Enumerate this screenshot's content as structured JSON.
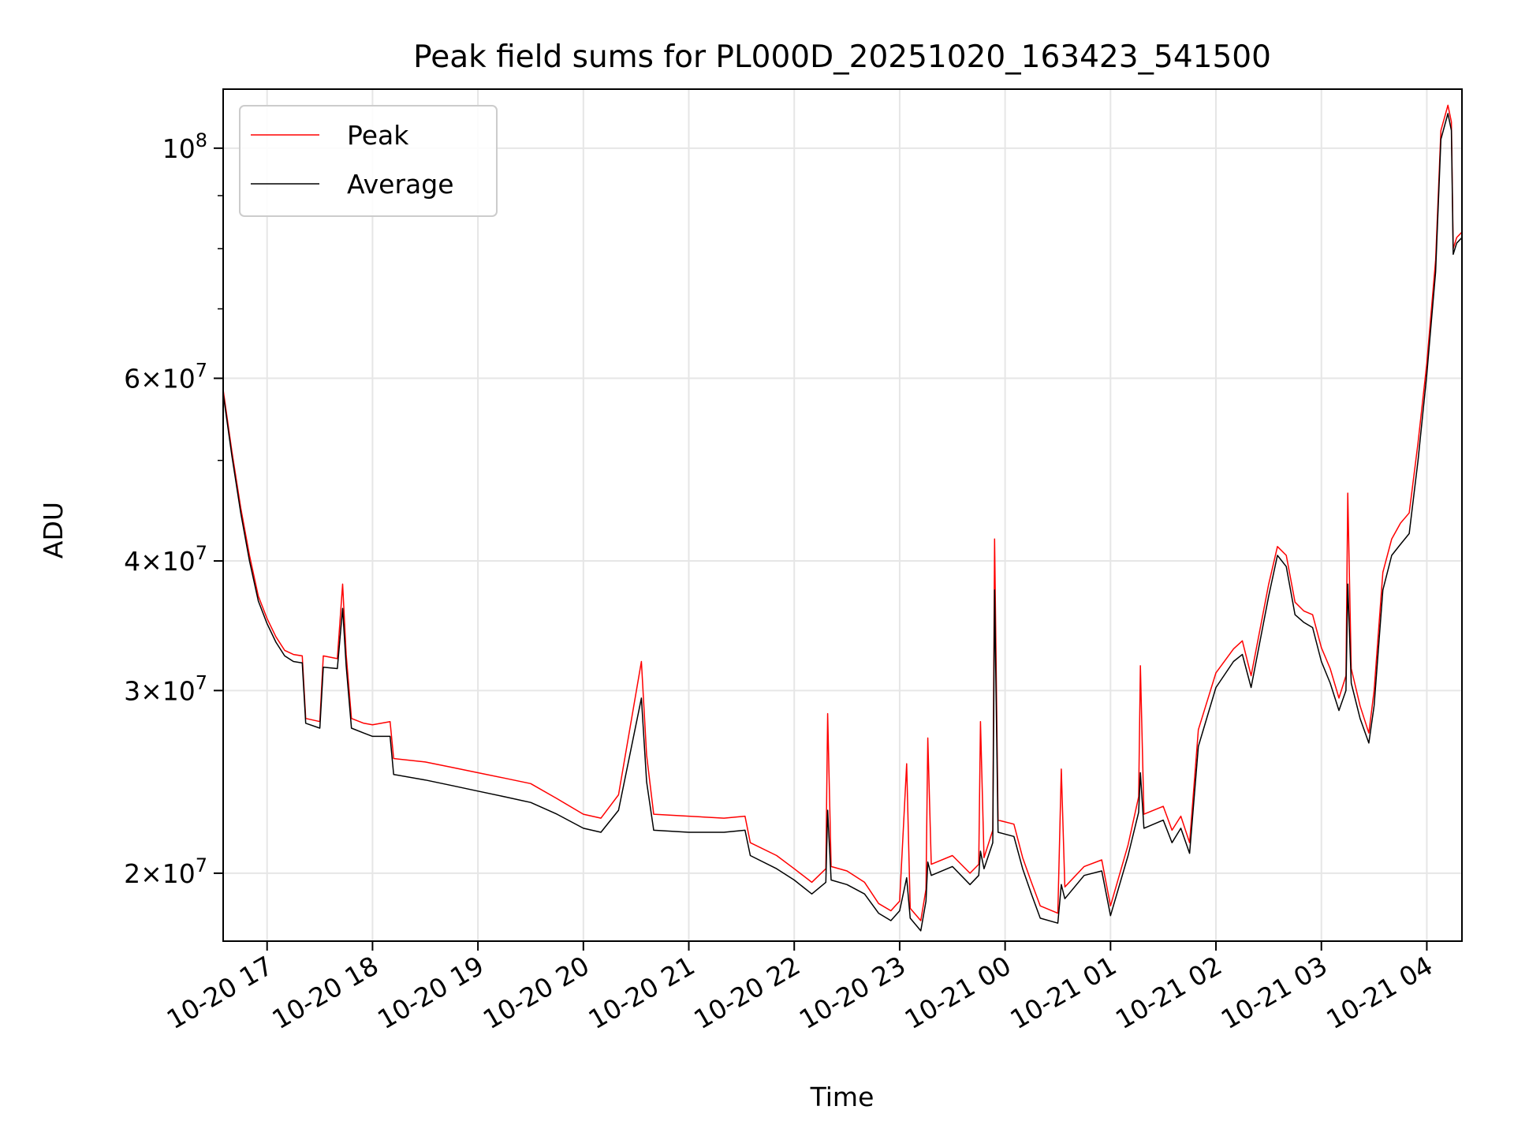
{
  "chart_data": {
    "type": "line",
    "title": "Peak field sums for PL000D_20251020_163423_541500",
    "xlabel": "Time",
    "ylabel": "ADU",
    "y_scale": "log",
    "ylim": [
      17200000,
      114000000
    ],
    "xlim": [
      "2025-10-20 16:35",
      "2025-10-21 04:20"
    ],
    "grid": true,
    "legend_position": "upper-left",
    "x_ticks": [
      {
        "label": "10-20 17",
        "t": "2025-10-20 17:00"
      },
      {
        "label": "10-20 18",
        "t": "2025-10-20 18:00"
      },
      {
        "label": "10-20 19",
        "t": "2025-10-20 19:00"
      },
      {
        "label": "10-20 20",
        "t": "2025-10-20 20:00"
      },
      {
        "label": "10-20 21",
        "t": "2025-10-20 21:00"
      },
      {
        "label": "10-20 22",
        "t": "2025-10-20 22:00"
      },
      {
        "label": "10-20 23",
        "t": "2025-10-20 23:00"
      },
      {
        "label": "10-21 00",
        "t": "2025-10-21 00:00"
      },
      {
        "label": "10-21 01",
        "t": "2025-10-21 01:00"
      },
      {
        "label": "10-21 02",
        "t": "2025-10-21 02:00"
      },
      {
        "label": "10-21 03",
        "t": "2025-10-21 03:00"
      },
      {
        "label": "10-21 04",
        "t": "2025-10-21 04:00"
      }
    ],
    "y_ticks": [
      {
        "value": 20000000,
        "mantissa": "2",
        "exp": "7"
      },
      {
        "value": 30000000,
        "mantissa": "3",
        "exp": "7"
      },
      {
        "value": 40000000,
        "mantissa": "4",
        "exp": "7"
      },
      {
        "value": 60000000,
        "mantissa": "6",
        "exp": "7"
      },
      {
        "value": 100000000,
        "mantissa": "",
        "exp": "8"
      }
    ],
    "series": [
      {
        "name": "Peak",
        "color": "#ff0000",
        "points": [
          [
            "2025-10-20 16:35",
            58500000
          ],
          [
            "2025-10-20 16:40",
            51000000
          ],
          [
            "2025-10-20 16:45",
            45000000
          ],
          [
            "2025-10-20 16:50",
            40500000
          ],
          [
            "2025-10-20 16:55",
            37000000
          ],
          [
            "2025-10-20 17:00",
            35200000
          ],
          [
            "2025-10-20 17:05",
            33800000
          ],
          [
            "2025-10-20 17:10",
            32800000
          ],
          [
            "2025-10-20 17:15",
            32500000
          ],
          [
            "2025-10-20 17:20",
            32400000
          ],
          [
            "2025-10-20 17:22",
            28200000
          ],
          [
            "2025-10-20 17:30",
            28000000
          ],
          [
            "2025-10-20 17:32",
            32400000
          ],
          [
            "2025-10-20 17:40",
            32200000
          ],
          [
            "2025-10-20 17:43",
            38000000
          ],
          [
            "2025-10-20 17:45",
            32500000
          ],
          [
            "2025-10-20 17:48",
            28200000
          ],
          [
            "2025-10-20 17:55",
            27900000
          ],
          [
            "2025-10-20 18:00",
            27800000
          ],
          [
            "2025-10-20 18:10",
            28000000
          ],
          [
            "2025-10-20 18:12",
            25800000
          ],
          [
            "2025-10-20 18:30",
            25600000
          ],
          [
            "2025-10-20 18:45",
            25300000
          ],
          [
            "2025-10-20 19:00",
            25000000
          ],
          [
            "2025-10-20 19:15",
            24700000
          ],
          [
            "2025-10-20 19:30",
            24400000
          ],
          [
            "2025-10-20 19:45",
            23600000
          ],
          [
            "2025-10-20 20:00",
            22800000
          ],
          [
            "2025-10-20 20:10",
            22600000
          ],
          [
            "2025-10-20 20:20",
            23800000
          ],
          [
            "2025-10-20 20:33",
            32000000
          ],
          [
            "2025-10-20 20:36",
            26000000
          ],
          [
            "2025-10-20 20:40",
            22800000
          ],
          [
            "2025-10-20 21:00",
            22700000
          ],
          [
            "2025-10-20 21:20",
            22600000
          ],
          [
            "2025-10-20 21:32",
            22700000
          ],
          [
            "2025-10-20 21:35",
            21400000
          ],
          [
            "2025-10-20 21:50",
            20800000
          ],
          [
            "2025-10-20 22:00",
            20200000
          ],
          [
            "2025-10-20 22:10",
            19600000
          ],
          [
            "2025-10-20 22:18",
            20200000
          ],
          [
            "2025-10-20 22:19",
            28500000
          ],
          [
            "2025-10-20 22:21",
            20300000
          ],
          [
            "2025-10-20 22:30",
            20100000
          ],
          [
            "2025-10-20 22:40",
            19600000
          ],
          [
            "2025-10-20 22:48",
            18700000
          ],
          [
            "2025-10-20 22:55",
            18400000
          ],
          [
            "2025-10-20 23:00",
            18800000
          ],
          [
            "2025-10-20 23:04",
            25500000
          ],
          [
            "2025-10-20 23:06",
            18500000
          ],
          [
            "2025-10-20 23:12",
            18000000
          ],
          [
            "2025-10-20 23:15",
            19300000
          ],
          [
            "2025-10-20 23:16",
            27000000
          ],
          [
            "2025-10-20 23:18",
            20400000
          ],
          [
            "2025-10-20 23:30",
            20800000
          ],
          [
            "2025-10-20 23:40",
            20000000
          ],
          [
            "2025-10-20 23:45",
            20400000
          ],
          [
            "2025-10-20 23:46",
            28000000
          ],
          [
            "2025-10-20 23:48",
            20700000
          ],
          [
            "2025-10-20 23:53",
            22000000
          ],
          [
            "2025-10-20 23:54",
            42000000
          ],
          [
            "2025-10-20 23:56",
            22500000
          ],
          [
            "2025-10-21 00:05",
            22300000
          ],
          [
            "2025-10-21 00:10",
            20700000
          ],
          [
            "2025-10-21 00:15",
            19600000
          ],
          [
            "2025-10-21 00:20",
            18600000
          ],
          [
            "2025-10-21 00:30",
            18300000
          ],
          [
            "2025-10-21 00:32",
            25200000
          ],
          [
            "2025-10-21 00:34",
            19400000
          ],
          [
            "2025-10-21 00:45",
            20300000
          ],
          [
            "2025-10-21 00:55",
            20600000
          ],
          [
            "2025-10-21 01:00",
            18600000
          ],
          [
            "2025-10-21 01:10",
            21300000
          ],
          [
            "2025-10-21 01:16",
            23700000
          ],
          [
            "2025-10-21 01:17",
            31700000
          ],
          [
            "2025-10-21 01:19",
            22800000
          ],
          [
            "2025-10-21 01:30",
            23200000
          ],
          [
            "2025-10-21 01:35",
            22000000
          ],
          [
            "2025-10-21 01:40",
            22700000
          ],
          [
            "2025-10-21 01:45",
            21400000
          ],
          [
            "2025-10-21 01:50",
            27500000
          ],
          [
            "2025-10-21 01:55",
            29300000
          ],
          [
            "2025-10-21 02:00",
            31200000
          ],
          [
            "2025-10-21 02:10",
            32900000
          ],
          [
            "2025-10-21 02:15",
            33500000
          ],
          [
            "2025-10-21 02:20",
            31000000
          ],
          [
            "2025-10-21 02:30",
            38000000
          ],
          [
            "2025-10-21 02:35",
            41300000
          ],
          [
            "2025-10-21 02:40",
            40500000
          ],
          [
            "2025-10-21 02:45",
            36500000
          ],
          [
            "2025-10-21 02:50",
            35800000
          ],
          [
            "2025-10-21 02:55",
            35500000
          ],
          [
            "2025-10-21 03:00",
            33000000
          ],
          [
            "2025-10-21 03:05",
            31500000
          ],
          [
            "2025-10-21 03:10",
            29500000
          ],
          [
            "2025-10-21 03:14",
            31000000
          ],
          [
            "2025-10-21 03:15",
            46500000
          ],
          [
            "2025-10-21 03:17",
            31500000
          ],
          [
            "2025-10-21 03:22",
            29000000
          ],
          [
            "2025-10-21 03:27",
            27300000
          ],
          [
            "2025-10-21 03:30",
            30000000
          ],
          [
            "2025-10-21 03:35",
            39000000
          ],
          [
            "2025-10-21 03:40",
            42000000
          ],
          [
            "2025-10-21 03:45",
            43500000
          ],
          [
            "2025-10-21 03:50",
            44500000
          ],
          [
            "2025-10-21 03:55",
            52000000
          ],
          [
            "2025-10-21 04:00",
            62000000
          ],
          [
            "2025-10-21 04:05",
            78000000
          ],
          [
            "2025-10-21 04:08",
            104000000
          ],
          [
            "2025-10-21 04:12",
            110000000
          ],
          [
            "2025-10-21 04:14",
            106000000
          ],
          [
            "2025-10-21 04:15",
            80000000
          ],
          [
            "2025-10-21 04:17",
            82000000
          ],
          [
            "2025-10-21 04:20",
            83000000
          ]
        ]
      },
      {
        "name": "Average",
        "color": "#000000",
        "points": [
          [
            "2025-10-20 16:35",
            58000000
          ],
          [
            "2025-10-20 16:40",
            50500000
          ],
          [
            "2025-10-20 16:45",
            44500000
          ],
          [
            "2025-10-20 16:50",
            40000000
          ],
          [
            "2025-10-20 16:55",
            36600000
          ],
          [
            "2025-10-20 17:00",
            34800000
          ],
          [
            "2025-10-20 17:05",
            33400000
          ],
          [
            "2025-10-20 17:10",
            32400000
          ],
          [
            "2025-10-20 17:15",
            32000000
          ],
          [
            "2025-10-20 17:20",
            31900000
          ],
          [
            "2025-10-20 17:22",
            27900000
          ],
          [
            "2025-10-20 17:30",
            27600000
          ],
          [
            "2025-10-20 17:32",
            31600000
          ],
          [
            "2025-10-20 17:40",
            31500000
          ],
          [
            "2025-10-20 17:43",
            36000000
          ],
          [
            "2025-10-20 17:45",
            31700000
          ],
          [
            "2025-10-20 17:48",
            27600000
          ],
          [
            "2025-10-20 17:55",
            27300000
          ],
          [
            "2025-10-20 18:00",
            27100000
          ],
          [
            "2025-10-20 18:10",
            27100000
          ],
          [
            "2025-10-20 18:12",
            24900000
          ],
          [
            "2025-10-20 18:30",
            24600000
          ],
          [
            "2025-10-20 18:45",
            24300000
          ],
          [
            "2025-10-20 19:00",
            24000000
          ],
          [
            "2025-10-20 19:15",
            23700000
          ],
          [
            "2025-10-20 19:30",
            23400000
          ],
          [
            "2025-10-20 19:45",
            22800000
          ],
          [
            "2025-10-20 20:00",
            22100000
          ],
          [
            "2025-10-20 20:10",
            21900000
          ],
          [
            "2025-10-20 20:20",
            23000000
          ],
          [
            "2025-10-20 20:33",
            29500000
          ],
          [
            "2025-10-20 20:36",
            24500000
          ],
          [
            "2025-10-20 20:40",
            22000000
          ],
          [
            "2025-10-20 21:00",
            21900000
          ],
          [
            "2025-10-20 21:20",
            21900000
          ],
          [
            "2025-10-20 21:32",
            22000000
          ],
          [
            "2025-10-20 21:35",
            20800000
          ],
          [
            "2025-10-20 21:50",
            20200000
          ],
          [
            "2025-10-20 22:00",
            19700000
          ],
          [
            "2025-10-20 22:10",
            19100000
          ],
          [
            "2025-10-20 22:18",
            19600000
          ],
          [
            "2025-10-20 22:19",
            23000000
          ],
          [
            "2025-10-20 22:21",
            19700000
          ],
          [
            "2025-10-20 22:30",
            19500000
          ],
          [
            "2025-10-20 22:40",
            19100000
          ],
          [
            "2025-10-20 22:48",
            18300000
          ],
          [
            "2025-10-20 22:55",
            18000000
          ],
          [
            "2025-10-20 23:00",
            18400000
          ],
          [
            "2025-10-20 23:04",
            19800000
          ],
          [
            "2025-10-20 23:06",
            18100000
          ],
          [
            "2025-10-20 23:12",
            17600000
          ],
          [
            "2025-10-20 23:15",
            18800000
          ],
          [
            "2025-10-20 23:16",
            20500000
          ],
          [
            "2025-10-20 23:18",
            19900000
          ],
          [
            "2025-10-20 23:30",
            20300000
          ],
          [
            "2025-10-20 23:40",
            19500000
          ],
          [
            "2025-10-20 23:45",
            19900000
          ],
          [
            "2025-10-20 23:46",
            21000000
          ],
          [
            "2025-10-20 23:48",
            20200000
          ],
          [
            "2025-10-20 23:53",
            21400000
          ],
          [
            "2025-10-20 23:54",
            37500000
          ],
          [
            "2025-10-20 23:56",
            21900000
          ],
          [
            "2025-10-21 00:05",
            21700000
          ],
          [
            "2025-10-21 00:10",
            20200000
          ],
          [
            "2025-10-21 00:15",
            19100000
          ],
          [
            "2025-10-21 00:20",
            18100000
          ],
          [
            "2025-10-21 00:30",
            17900000
          ],
          [
            "2025-10-21 00:32",
            19500000
          ],
          [
            "2025-10-21 00:34",
            18900000
          ],
          [
            "2025-10-21 00:45",
            19900000
          ],
          [
            "2025-10-21 00:55",
            20100000
          ],
          [
            "2025-10-21 01:00",
            18200000
          ],
          [
            "2025-10-21 01:10",
            20800000
          ],
          [
            "2025-10-21 01:16",
            22900000
          ],
          [
            "2025-10-21 01:17",
            25000000
          ],
          [
            "2025-10-21 01:19",
            22100000
          ],
          [
            "2025-10-21 01:30",
            22500000
          ],
          [
            "2025-10-21 01:35",
            21400000
          ],
          [
            "2025-10-21 01:40",
            22100000
          ],
          [
            "2025-10-21 01:45",
            20900000
          ],
          [
            "2025-10-21 01:50",
            26500000
          ],
          [
            "2025-10-21 01:55",
            28300000
          ],
          [
            "2025-10-21 02:00",
            30200000
          ],
          [
            "2025-10-21 02:10",
            32000000
          ],
          [
            "2025-10-21 02:15",
            32500000
          ],
          [
            "2025-10-21 02:20",
            30200000
          ],
          [
            "2025-10-21 02:30",
            37000000
          ],
          [
            "2025-10-21 02:35",
            40500000
          ],
          [
            "2025-10-21 02:40",
            39500000
          ],
          [
            "2025-10-21 02:45",
            35500000
          ],
          [
            "2025-10-21 02:50",
            34900000
          ],
          [
            "2025-10-21 02:55",
            34500000
          ],
          [
            "2025-10-21 03:00",
            32000000
          ],
          [
            "2025-10-21 03:05",
            30500000
          ],
          [
            "2025-10-21 03:10",
            28700000
          ],
          [
            "2025-10-21 03:14",
            30000000
          ],
          [
            "2025-10-21 03:15",
            38000000
          ],
          [
            "2025-10-21 03:17",
            30500000
          ],
          [
            "2025-10-21 03:22",
            28200000
          ],
          [
            "2025-10-21 03:27",
            26700000
          ],
          [
            "2025-10-21 03:30",
            29000000
          ],
          [
            "2025-10-21 03:35",
            37500000
          ],
          [
            "2025-10-21 03:40",
            40500000
          ],
          [
            "2025-10-21 03:45",
            41500000
          ],
          [
            "2025-10-21 03:50",
            42500000
          ],
          [
            "2025-10-21 03:55",
            50000000
          ],
          [
            "2025-10-21 04:00",
            60500000
          ],
          [
            "2025-10-21 04:05",
            76000000
          ],
          [
            "2025-10-21 04:08",
            102000000
          ],
          [
            "2025-10-21 04:12",
            108000000
          ],
          [
            "2025-10-21 04:14",
            104000000
          ],
          [
            "2025-10-21 04:15",
            79000000
          ],
          [
            "2025-10-21 04:17",
            81000000
          ],
          [
            "2025-10-21 04:20",
            82000000
          ]
        ]
      }
    ]
  }
}
